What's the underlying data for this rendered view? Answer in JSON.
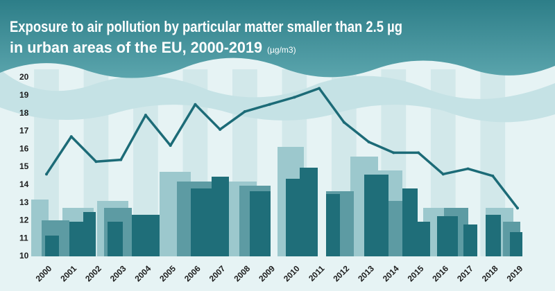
{
  "chart_data": {
    "type": "line",
    "title": "Exposure to air pollution by particular matter smaller than 2.5 µg",
    "subtitle": "in urban areas of the EU, 2000-2019",
    "unit": "(µg/m3)",
    "categories": [
      "2000",
      "2001",
      "2002",
      "2003",
      "2004",
      "2005",
      "2006",
      "2007",
      "2008",
      "2009",
      "2010",
      "2011",
      "2012",
      "2013",
      "2014",
      "2015",
      "2016",
      "2017",
      "2018",
      "2019"
    ],
    "values": [
      14.6,
      16.7,
      15.3,
      15.4,
      17.9,
      16.2,
      18.5,
      17.1,
      18.1,
      18.5,
      18.9,
      19.4,
      17.5,
      16.4,
      15.8,
      15.8,
      14.6,
      14.9,
      14.5,
      12.7
    ],
    "color": "#1c6b77",
    "ylim": [
      10,
      20
    ],
    "yticks": [
      10,
      11,
      12,
      13,
      14,
      15,
      16,
      17,
      18,
      19,
      20
    ]
  }
}
